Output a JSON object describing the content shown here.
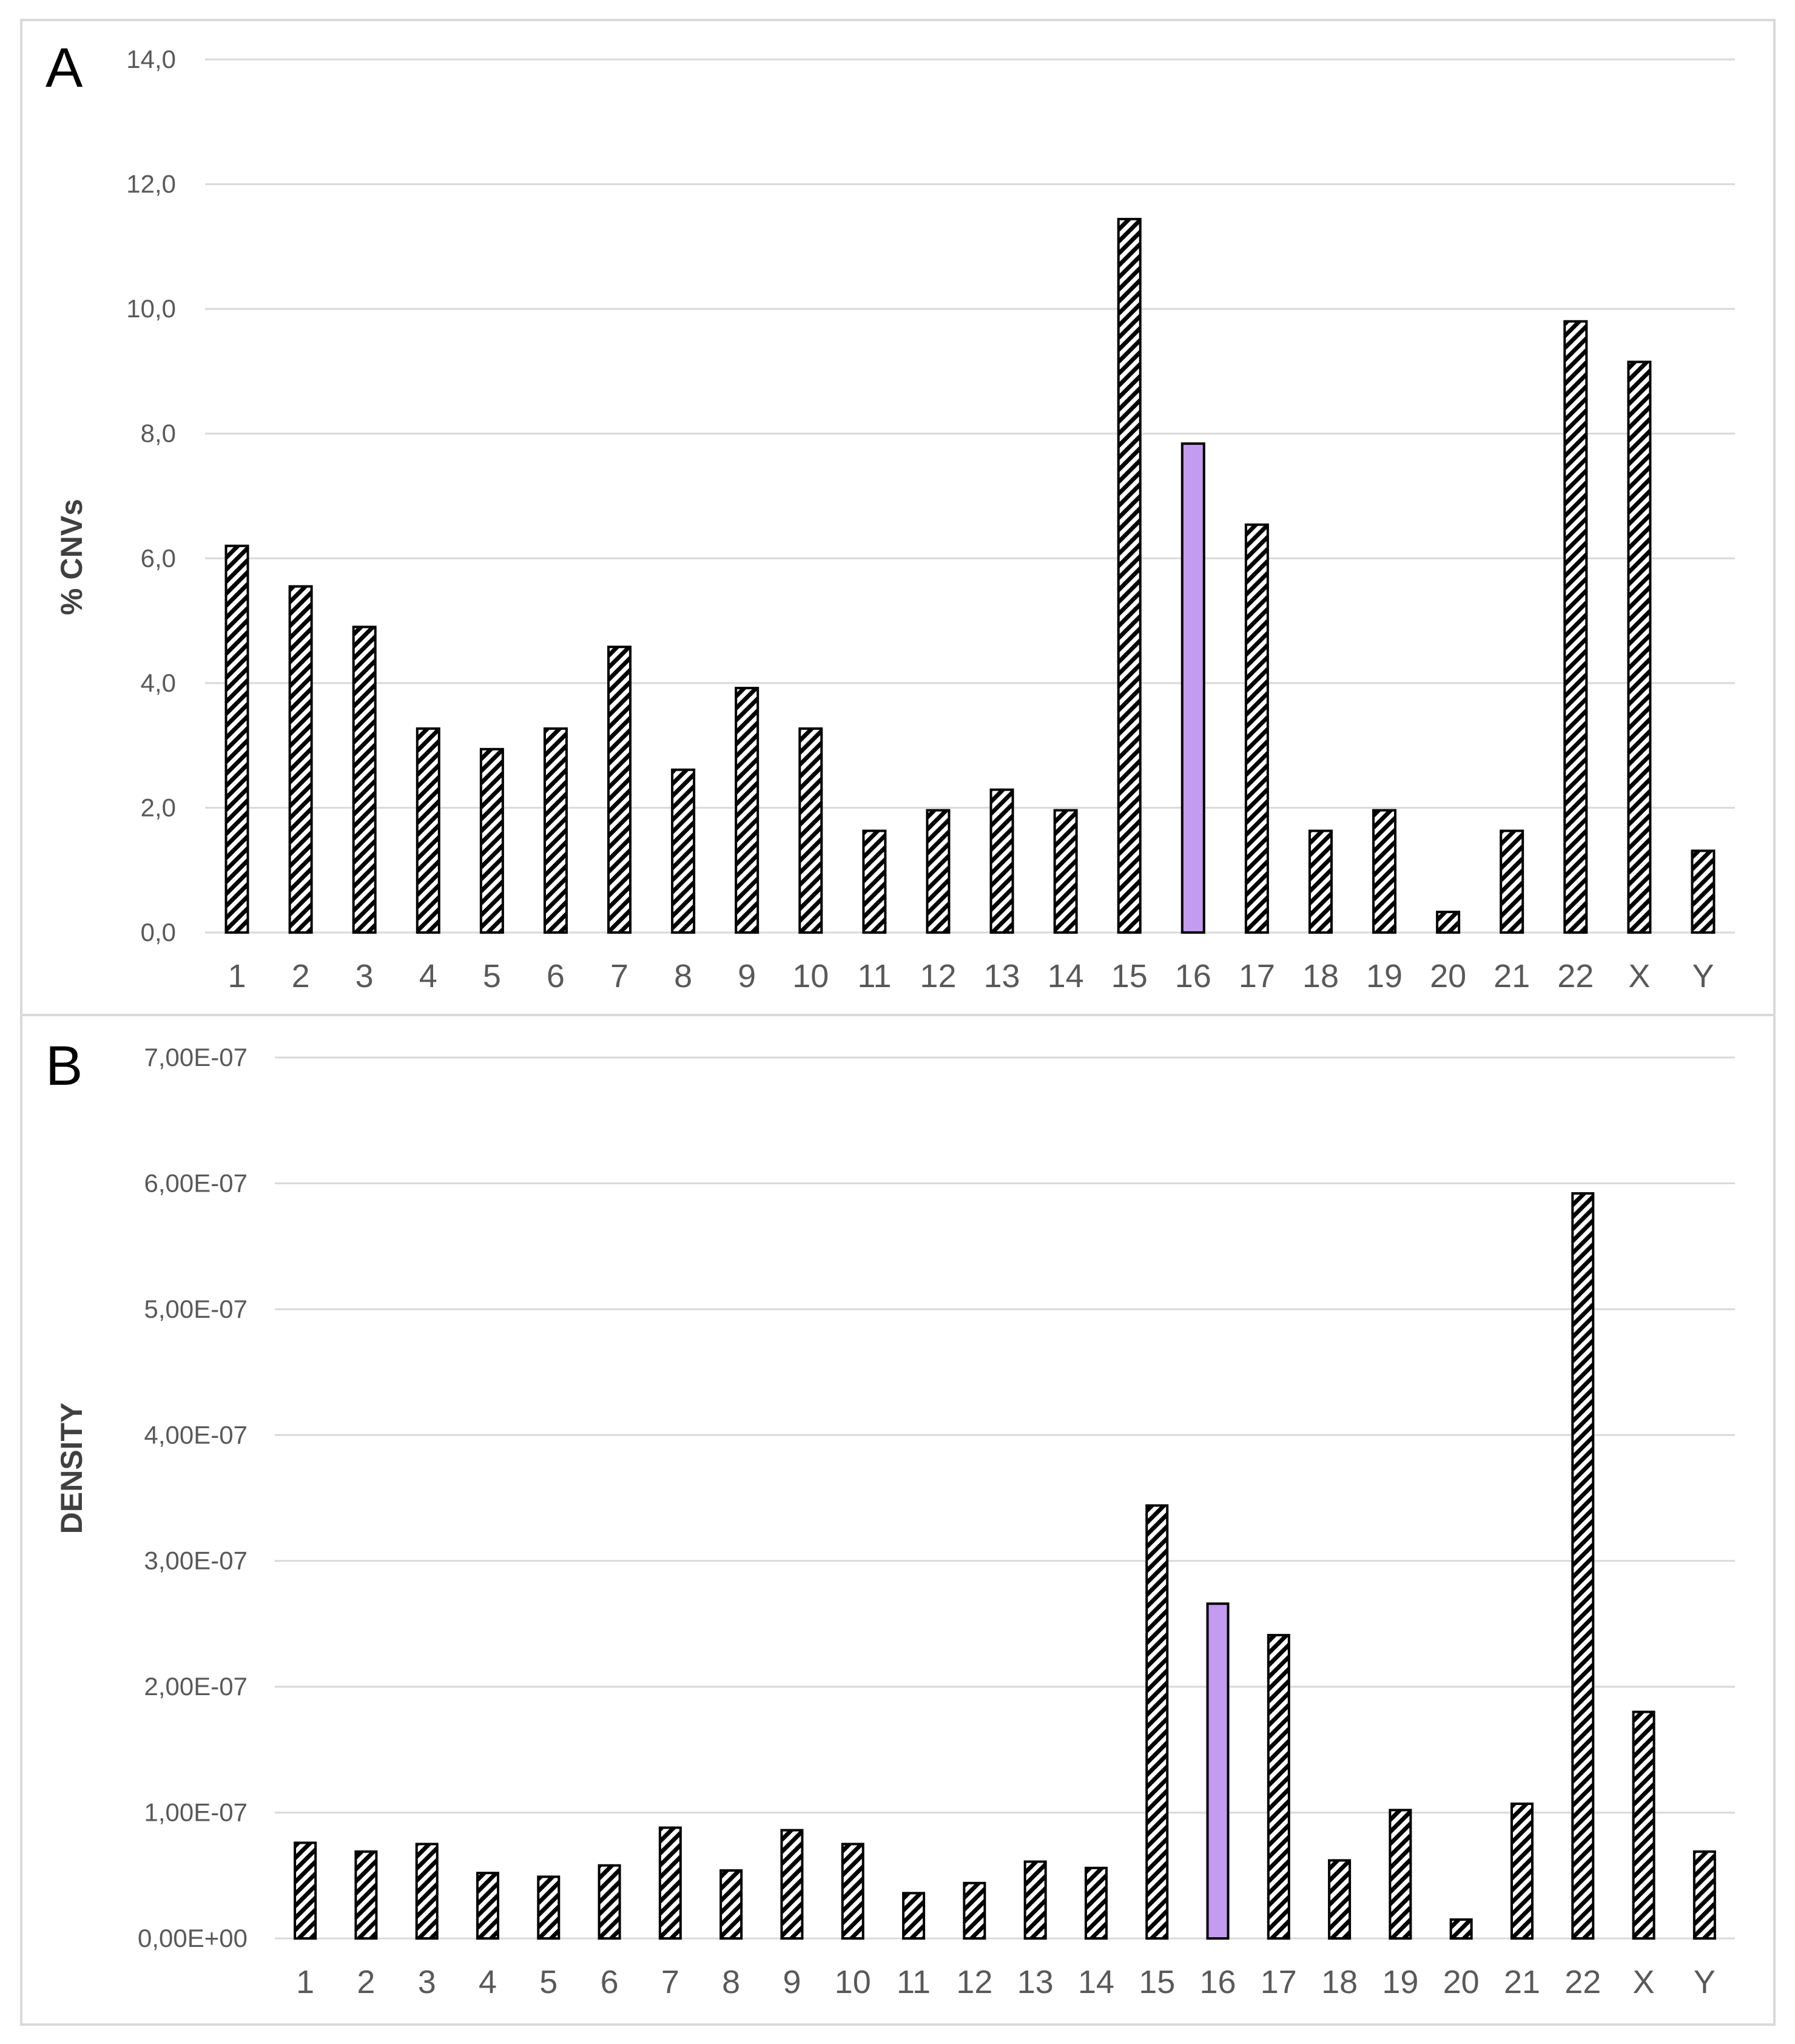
{
  "colors": {
    "highlight": "#c39bf0",
    "bar_stroke": "#000000",
    "grid": "#d9d9d9",
    "text": "#595959"
  },
  "chart_data": [
    {
      "type": "bar",
      "panel_label": "A",
      "ylabel": "% CNVs",
      "xlabel": "",
      "categories": [
        "1",
        "2",
        "3",
        "4",
        "5",
        "6",
        "7",
        "8",
        "9",
        "10",
        "11",
        "12",
        "13",
        "14",
        "15",
        "16",
        "17",
        "18",
        "19",
        "20",
        "21",
        "22",
        "X",
        "Y"
      ],
      "values": [
        6.2,
        5.55,
        4.9,
        3.27,
        2.94,
        3.27,
        4.58,
        2.61,
        3.92,
        3.27,
        1.63,
        1.96,
        2.29,
        1.96,
        11.44,
        7.84,
        6.54,
        1.63,
        1.96,
        0.33,
        1.63,
        9.8,
        9.15,
        1.31
      ],
      "highlight_category": "16",
      "ylim": [
        0,
        14
      ],
      "yticks": [
        0,
        2,
        4,
        6,
        8,
        10,
        12,
        14
      ],
      "ytick_labels": [
        "0,0",
        "2,0",
        "4,0",
        "6,0",
        "8,0",
        "10,0",
        "12,0",
        "14,0"
      ],
      "grid": true
    },
    {
      "type": "bar",
      "panel_label": "B",
      "ylabel": "DENSITY",
      "xlabel": "",
      "categories": [
        "1",
        "2",
        "3",
        "4",
        "5",
        "6",
        "7",
        "8",
        "9",
        "10",
        "11",
        "12",
        "13",
        "14",
        "15",
        "16",
        "17",
        "18",
        "19",
        "20",
        "21",
        "22",
        "X",
        "Y"
      ],
      "values": [
        7.6e-08,
        6.9e-08,
        7.5e-08,
        5.2e-08,
        4.9e-08,
        5.8e-08,
        8.8e-08,
        5.4e-08,
        8.6e-08,
        7.5e-08,
        3.6e-08,
        4.4e-08,
        6.1e-08,
        5.6e-08,
        3.44e-07,
        2.66e-07,
        2.41e-07,
        6.2e-08,
        1.02e-07,
        1.5e-08,
        1.07e-07,
        5.92e-07,
        1.8e-07,
        6.9e-08
      ],
      "highlight_category": "16",
      "ylim": [
        0,
        7e-07
      ],
      "yticks": [
        0,
        1e-07,
        2e-07,
        3e-07,
        4e-07,
        5e-07,
        6e-07,
        7e-07
      ],
      "ytick_labels": [
        "0,00E+00",
        "1,00E-07",
        "2,00E-07",
        "3,00E-07",
        "4,00E-07",
        "5,00E-07",
        "6,00E-07",
        "7,00E-07"
      ],
      "grid": true
    }
  ]
}
